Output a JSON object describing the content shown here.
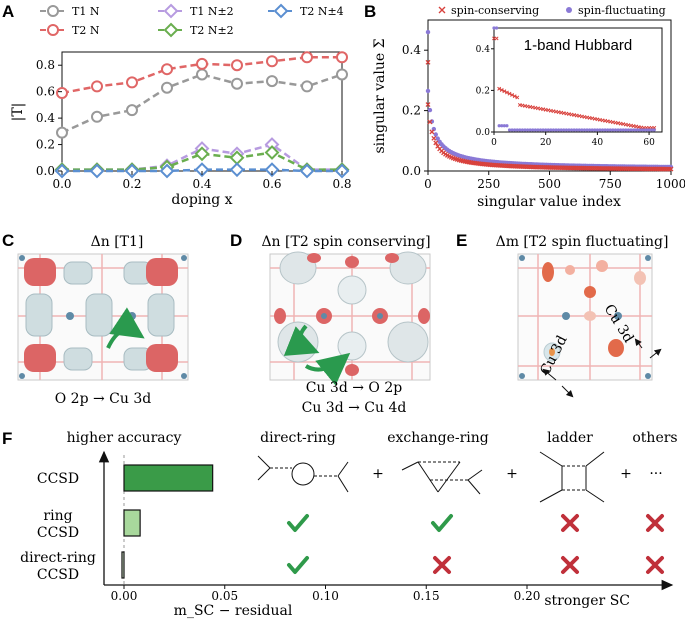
{
  "panel_labels": [
    "A",
    "B",
    "C",
    "D",
    "E",
    "F"
  ],
  "chart_data": [
    {
      "type": "line",
      "panel": "A",
      "xlabel": "doping x",
      "ylabel": "|T|",
      "xlim": [
        0,
        0.8
      ],
      "ylim": [
        0,
        0.9
      ],
      "xticks": [
        "0.0",
        "0.2",
        "0.4",
        "0.6",
        "0.8"
      ],
      "yticks": [
        "0.0",
        "0.2",
        "0.4",
        "0.6",
        "0.8"
      ],
      "x": [
        0,
        0.1,
        0.2,
        0.3,
        0.4,
        0.5,
        0.6,
        0.7,
        0.8
      ],
      "legend_position": "top",
      "series": [
        {
          "name": "T1 N",
          "color": "#999999",
          "marker": "circle",
          "values": [
            0.29,
            0.41,
            0.46,
            0.63,
            0.73,
            0.66,
            0.68,
            0.64,
            0.73
          ]
        },
        {
          "name": "T2 N",
          "color": "#e06666",
          "marker": "circle",
          "values": [
            0.59,
            0.64,
            0.67,
            0.77,
            0.81,
            0.8,
            0.83,
            0.86,
            0.86
          ]
        },
        {
          "name": "T1 N±2",
          "color": "#b79be0",
          "marker": "diamond",
          "values": [
            0.01,
            0.01,
            0.01,
            0.04,
            0.17,
            0.13,
            0.2,
            0.01,
            0.01
          ]
        },
        {
          "name": "T2 N±2",
          "color": "#6aae4f",
          "marker": "diamond",
          "values": [
            0.01,
            0.01,
            0.01,
            0.03,
            0.13,
            0.1,
            0.14,
            0.01,
            0.01
          ]
        },
        {
          "name": "T2 N±4",
          "color": "#5b8fd1",
          "marker": "diamond",
          "values": [
            0.0,
            0.0,
            0.0,
            0.0,
            0.01,
            0.01,
            0.01,
            0.0,
            0.0
          ]
        }
      ]
    },
    {
      "type": "scatter",
      "panel": "B",
      "xlabel": "singular value index",
      "ylabel": "singular value Σ",
      "xlim": [
        0,
        1000
      ],
      "ylim": [
        0,
        0.5
      ],
      "xticks": [
        "0",
        "250",
        "500",
        "750",
        "1000"
      ],
      "yticks": [
        "0.0",
        "0.2",
        "0.4"
      ],
      "legend_position": "top",
      "series": [
        {
          "name": "spin-conserving",
          "color": "#d8413c",
          "marker": "x"
        },
        {
          "name": "spin-fluctuating",
          "color": "#8a79d6",
          "marker": "dot"
        }
      ],
      "inset": {
        "title": "1-band Hubbard",
        "xlim": [
          0,
          65
        ],
        "ylim": [
          0,
          0.5
        ],
        "xticks": [
          "0",
          "20",
          "40",
          "60"
        ],
        "yticks": [
          "0.0",
          "0.2",
          "0.4"
        ]
      }
    },
    {
      "type": "bar",
      "panel": "F",
      "orientation": "horizontal",
      "categories": [
        "CCSD",
        "ring CCSD",
        "direct-ring CCSD"
      ],
      "values": [
        0.044,
        0.008,
        -0.001
      ],
      "colors": [
        "#3a9b48",
        "#a8d89c",
        "#d9efd2"
      ],
      "xlabel": "m_SC − residual",
      "xticks": [
        "0.00",
        "0.05",
        "0.10",
        "0.15",
        "0.20"
      ],
      "xlim": [
        -0.002,
        0.23
      ]
    }
  ],
  "panel_c": {
    "title": "Δn [T1]",
    "caption": "O 2p → Cu 3d"
  },
  "panel_d": {
    "title": "Δn [T2 spin conserving]",
    "caption1": "Cu 3d → O 2p",
    "caption2": "Cu 3d → Cu 4d"
  },
  "panel_e": {
    "title": "Δm [T2 spin fluctuating]",
    "label1": "Cu 3d",
    "label2": "Cu 3d"
  },
  "panel_f": {
    "y_top_label": "higher accuracy",
    "x_right_label": "stronger SC",
    "diagrams": [
      "direct-ring",
      "exchange-ring",
      "ladder",
      "others"
    ],
    "plus": "+",
    "ellipsis": "···",
    "check_color": "#2f9a4a",
    "cross_color": "#c0303a",
    "rows": [
      {
        "label": "ring CCSD",
        "marks": [
          "check",
          "check",
          "cross",
          "cross"
        ]
      },
      {
        "label": "direct-ring CCSD",
        "marks": [
          "check",
          "cross",
          "cross",
          "cross"
        ]
      }
    ]
  }
}
